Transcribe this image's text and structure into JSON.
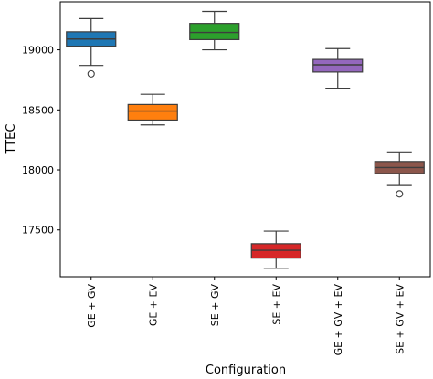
{
  "chart_data": {
    "type": "box",
    "title": "",
    "xlabel": "Configuration",
    "ylabel": "TTEC",
    "ylim": [
      17110,
      19400
    ],
    "yticks": [
      17500,
      18000,
      18500,
      19000
    ],
    "ytick_labels": [
      "17500",
      "18000",
      "18500",
      "19000"
    ],
    "grid": false,
    "categories": [
      "GE + GV",
      "GE + EV",
      "SE + GV",
      "SE + EV",
      "GE + GV + EV",
      "SE + GV + EV"
    ],
    "boxes": [
      {
        "category": "GE + GV",
        "whisker_low": 18870,
        "q1": 19030,
        "median": 19090,
        "q3": 19150,
        "whisker_high": 19260,
        "outliers": [
          18800
        ],
        "color": "#1f77b4"
      },
      {
        "category": "GE + EV",
        "whisker_low": 18375,
        "q1": 18415,
        "median": 18490,
        "q3": 18545,
        "whisker_high": 18630,
        "outliers": [],
        "color": "#ff7f0e"
      },
      {
        "category": "SE + GV",
        "whisker_low": 19000,
        "q1": 19085,
        "median": 19145,
        "q3": 19220,
        "whisker_high": 19320,
        "outliers": [],
        "color": "#2ca02c"
      },
      {
        "category": "SE + EV",
        "whisker_low": 17180,
        "q1": 17265,
        "median": 17330,
        "q3": 17385,
        "whisker_high": 17490,
        "outliers": [],
        "color": "#d62728"
      },
      {
        "category": "GE + GV + EV",
        "whisker_low": 18680,
        "q1": 18815,
        "median": 18875,
        "q3": 18920,
        "whisker_high": 19010,
        "outliers": [],
        "color": "#9467bd"
      },
      {
        "category": "SE + GV + EV",
        "whisker_low": 17870,
        "q1": 17970,
        "median": 18020,
        "q3": 18070,
        "whisker_high": 18150,
        "outliers": [
          17800
        ],
        "color": "#8c564b"
      }
    ]
  }
}
